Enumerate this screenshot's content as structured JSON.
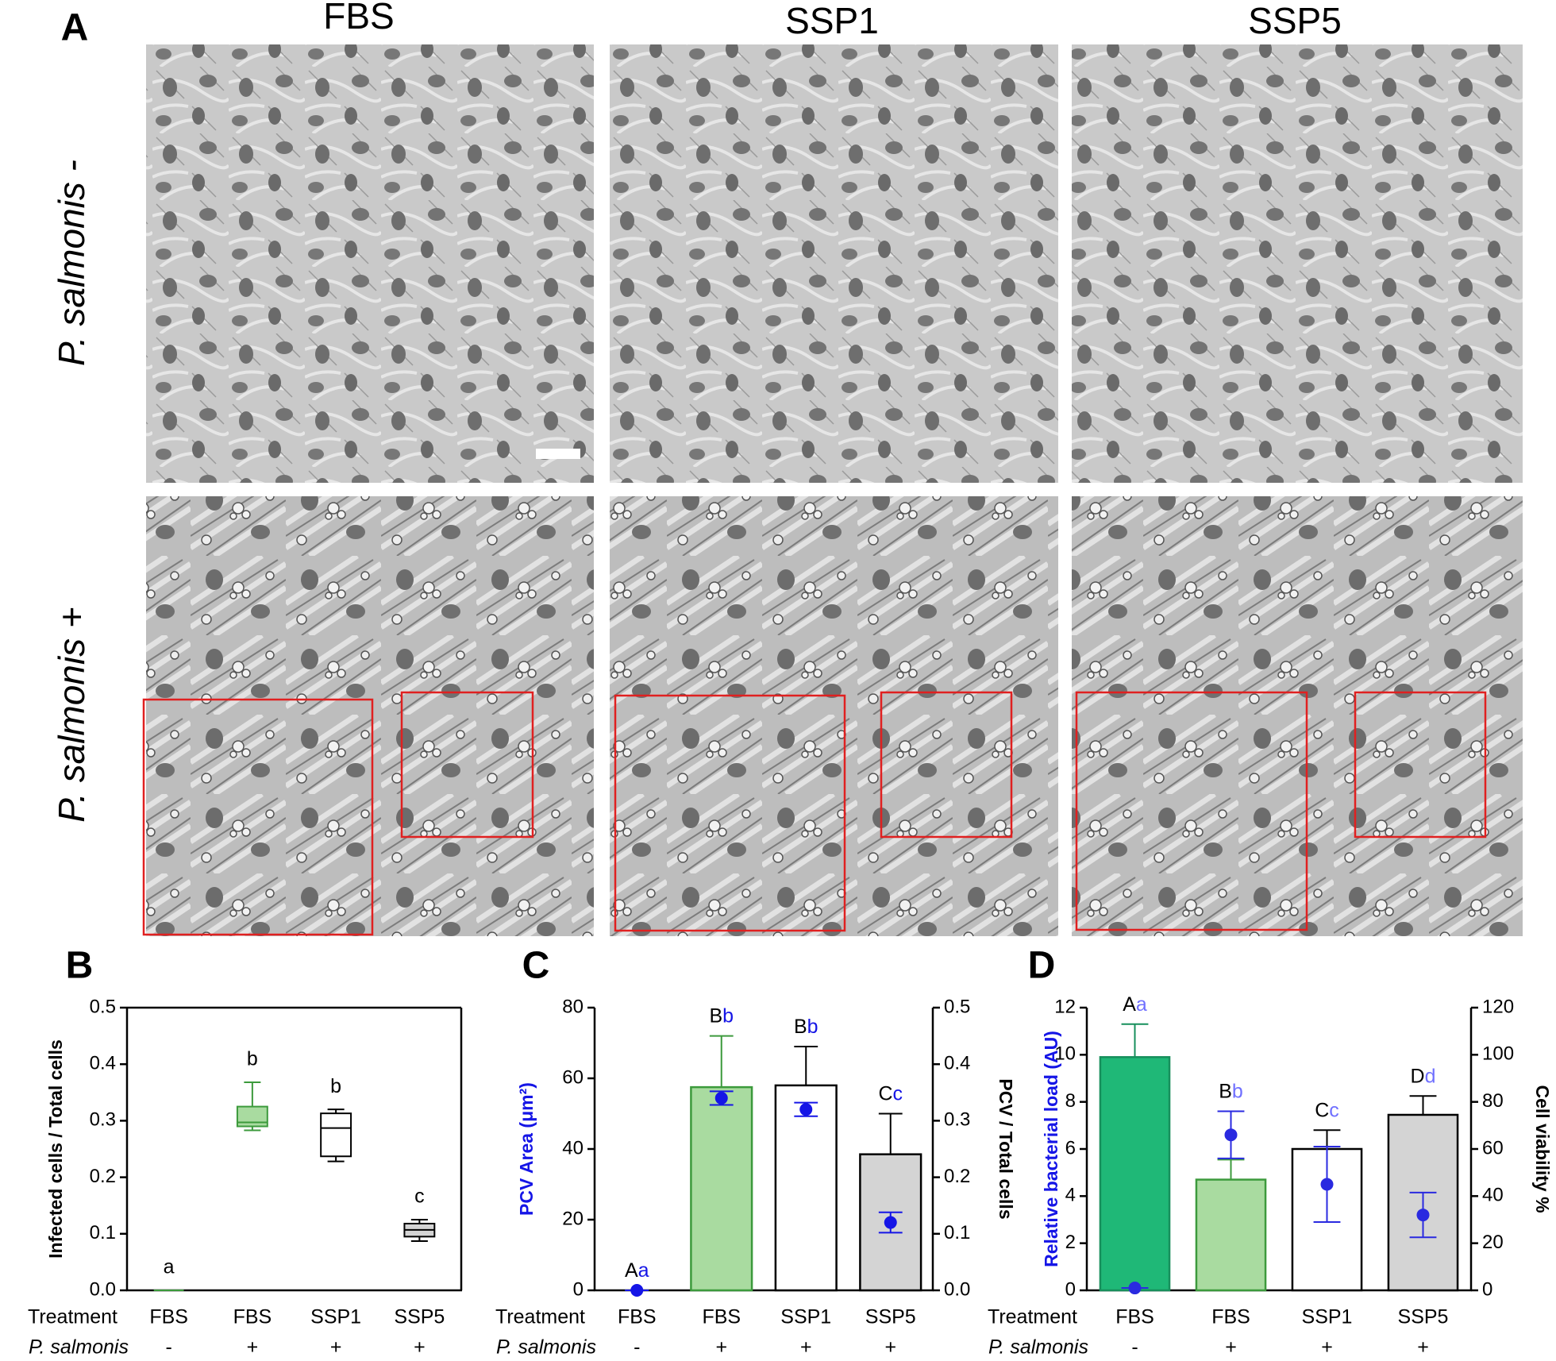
{
  "panel_a": {
    "label": "A",
    "columns": [
      "FBS",
      "SSP1",
      "SSP5"
    ],
    "rows": [
      "P. salmonis -",
      "P. salmonis +"
    ]
  },
  "chart_data": [
    {
      "type": "box",
      "label": "B",
      "ylabel": "Infected cells / Total cells",
      "ylim": [
        0,
        0.5
      ],
      "yticks": [
        {
          "value": 0,
          "label": "0.0"
        },
        0.1,
        0.2,
        0.3,
        0.4,
        0.5
      ],
      "frame": true,
      "category_title": "Treatment",
      "categories": [
        "FBS",
        "FBS",
        "SSP1",
        "SSP5"
      ],
      "subcategory_title": "P. salmonis",
      "subcategories": [
        "-",
        "+",
        "+",
        "+"
      ],
      "boxes": {
        "min": [
          0,
          0.283,
          0.228,
          0.087
        ],
        "q1": [
          0,
          0.29,
          0.237,
          0.095
        ],
        "median": [
          0,
          0.297,
          0.287,
          0.107
        ],
        "q3": [
          0,
          0.325,
          0.313,
          0.118
        ],
        "max": [
          0,
          0.368,
          0.32,
          0.125
        ]
      },
      "colors": [
        "#a9dba0",
        "#a9dba0",
        "#ffffff",
        "#d4d4d4"
      ],
      "edge_colors": [
        "#3c9a3c",
        "#3c9a3c",
        "#000000",
        "#000000"
      ],
      "annotations": [
        "a",
        "b",
        "b",
        "c"
      ]
    },
    {
      "type": "bar",
      "label": "C",
      "ylabel": "PCV Area (μm²)",
      "ylabel_color": "#1515e6",
      "ylim": [
        0,
        80
      ],
      "yticks": [
        0,
        20,
        40,
        60,
        80
      ],
      "y2label": "PCV / Total cells",
      "y2lim": [
        0,
        0.5
      ],
      "y2ticks": [
        {
          "value": 0,
          "label": "0.0"
        },
        0.1,
        0.2,
        0.3,
        0.4,
        0.5
      ],
      "category_title": "Treatment",
      "categories": [
        "FBS",
        "FBS",
        "SSP1",
        "SSP5"
      ],
      "subcategory_title": "P. salmonis",
      "subcategories": [
        "-",
        "+",
        "+",
        "+"
      ],
      "values": [
        0,
        57.5,
        58,
        38.5
      ],
      "errors": [
        0,
        14.5,
        11,
        11.5
      ],
      "colors": [
        "#a9dba0",
        "#a9dba0",
        "#ffffff",
        "#d4d4d4"
      ],
      "edge_colors": [
        "#3c9a3c",
        "#3c9a3c",
        "#000000",
        "#000000"
      ],
      "annotations": [
        "A",
        "B",
        "B",
        "C"
      ],
      "points": {
        "axis": "y2",
        "color": "#1515e6",
        "values": [
          0,
          0.34,
          0.32,
          0.12
        ],
        "errors": [
          0,
          0.012,
          0.012,
          0.018
        ],
        "annotations": [
          "a",
          "b",
          "b",
          "c"
        ],
        "annotation_color": "#1515e6"
      }
    },
    {
      "type": "bar",
      "label": "D",
      "ylabel": "Relative bacterial load (AU)",
      "ylabel_color": "#1515e6",
      "ylim": [
        0,
        12
      ],
      "yticks": [
        0,
        2,
        4,
        6,
        8,
        10,
        12
      ],
      "y2label": "Cell viability %",
      "y2lim": [
        0,
        120
      ],
      "y2ticks": [
        0,
        20,
        40,
        60,
        80,
        100,
        120
      ],
      "category_title": "Treatment",
      "categories": [
        "FBS",
        "FBS",
        "SSP1",
        "SSP5"
      ],
      "subcategory_title": "P. salmonis",
      "subcategories": [
        "-",
        "+",
        "+",
        "+"
      ],
      "values": [
        9.9,
        4.7,
        6.0,
        7.45
      ],
      "errors": [
        1.4,
        0.85,
        0.8,
        0.8
      ],
      "colors": [
        "#1fb877",
        "#a9dba0",
        "#ffffff",
        "#d4d4d4"
      ],
      "edge_colors": [
        "#178f5c",
        "#3c9a3c",
        "#000000",
        "#000000"
      ],
      "annotations": [
        "A",
        "B",
        "C",
        "D"
      ],
      "points": {
        "axis": "y2",
        "color": "#2a2ae0",
        "values": [
          1,
          66,
          45,
          32
        ],
        "errors": [
          0,
          10,
          16,
          9.5
        ],
        "annotations": [
          "a",
          "b",
          "c",
          "d"
        ],
        "annotation_color": "#7070ff"
      }
    }
  ]
}
